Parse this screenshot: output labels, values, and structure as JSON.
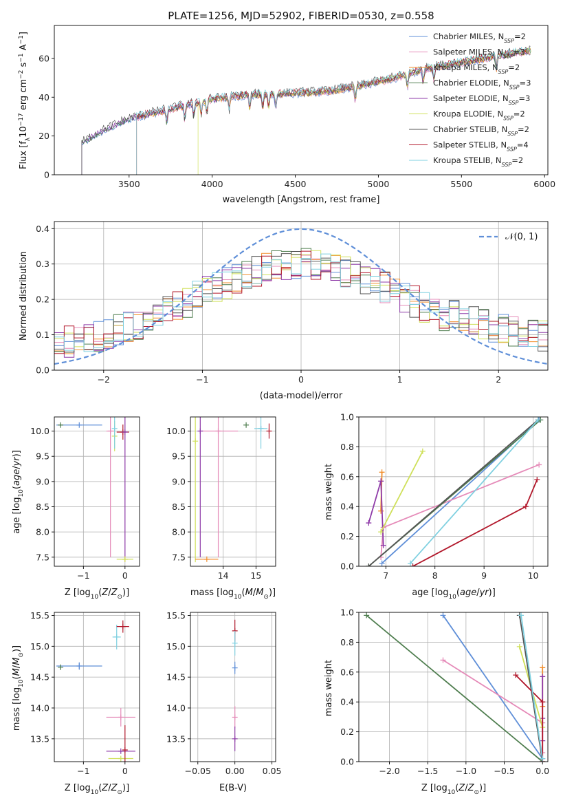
{
  "figure_title": "PLATE=1256, MJD=52902, FIBERID=0530, z=0.558",
  "models": [
    {
      "name": "Chabrier MILES",
      "nssp": "2",
      "color": "#5f8fd8"
    },
    {
      "name": "Salpeter MILES",
      "nssp": "3",
      "color": "#e58ab8"
    },
    {
      "name": "Kroupa MILES",
      "nssp": "2",
      "color": "#f28e2b"
    },
    {
      "name": "Chabrier ELODIE",
      "nssp": "3",
      "color": "#4e7d4e"
    },
    {
      "name": "Salpeter ELODIE",
      "nssp": "3",
      "color": "#8e3aa8"
    },
    {
      "name": "Kroupa ELODIE",
      "nssp": "2",
      "color": "#cfe05a"
    },
    {
      "name": "Chabrier STELIB",
      "nssp": "2",
      "color": "#555555"
    },
    {
      "name": "Salpeter STELIB",
      "nssp": "4",
      "color": "#b2182b"
    },
    {
      "name": "Kroupa STELIB",
      "nssp": "2",
      "color": "#7fd0e0"
    }
  ],
  "chart_data": [
    {
      "id": "spectrum",
      "type": "line",
      "title": "PLATE=1256, MJD=52902, FIBERID=0530, z=0.558",
      "xlabel": "wavelength [Angstrom, rest frame]",
      "ylabel": "Flux [f_λ 10^-17 erg cm^-2 s^-1 A^-1]",
      "xlim": [
        3050,
        6020
      ],
      "ylim": [
        0,
        77
      ],
      "xticks": [
        3500,
        4000,
        4500,
        5000,
        5500,
        6000
      ],
      "yticks": [
        0,
        20,
        40,
        60
      ],
      "grid": false,
      "legend": "top-right",
      "continuum": [
        [
          3230,
          17
        ],
        [
          3300,
          21
        ],
        [
          3500,
          29
        ],
        [
          3700,
          33
        ],
        [
          3900,
          37
        ],
        [
          4000,
          39
        ],
        [
          4200,
          41
        ],
        [
          4500,
          42
        ],
        [
          4700,
          43
        ],
        [
          4900,
          46
        ],
        [
          5100,
          50
        ],
        [
          5300,
          55
        ],
        [
          5500,
          58
        ],
        [
          5700,
          61
        ],
        [
          5900,
          64
        ]
      ],
      "starts": [
        3215,
        3545,
        3545,
        3215,
        3215,
        3915,
        3215,
        3545,
        3545
      ],
      "absorption_lines": [
        3727,
        3835,
        3889,
        3934,
        3968,
        4102,
        4226,
        4304,
        4340,
        4383,
        4861,
        5175,
        5270,
        5335,
        5710
      ]
    },
    {
      "id": "residuals",
      "type": "line",
      "xlabel": "(data-model)/error",
      "ylabel": "Normed distribution",
      "xlim": [
        -2.5,
        2.5
      ],
      "ylim": [
        0,
        0.42
      ],
      "xticks": [
        -2,
        -1,
        0,
        1,
        2
      ],
      "yticks": [
        0.0,
        0.1,
        0.2,
        0.3,
        0.4
      ],
      "grid": true,
      "legend": "top-right",
      "reference_label": "𝒩(0, 1)",
      "reference_color": "#5f8fd8"
    },
    {
      "id": "age_vs_Z",
      "type": "scatter",
      "xlabel": "Z [log10(Z/Z⊙)]",
      "ylabel": "age [log10(age/yr)]",
      "xlim": [
        -1.7,
        0.35
      ],
      "ylim": [
        7.32,
        10.28
      ],
      "xticks": [
        -1,
        0
      ],
      "yticks": [
        7.5,
        8.0,
        8.5,
        9.0,
        9.5,
        10.0
      ],
      "grid": true,
      "points": [
        {
          "m": 0,
          "x": -1.1,
          "y": 10.12,
          "xerr": 0.55
        },
        {
          "m": 3,
          "x": -1.55,
          "y": 10.12,
          "yerr": 0.02
        },
        {
          "m": 1,
          "x": -0.35,
          "y": 10.0,
          "xerr": 0.1,
          "yerr": 2.5
        },
        {
          "m": 5,
          "x": -0.25,
          "y": 9.9,
          "yerr": 0.3
        },
        {
          "m": 8,
          "x": -0.25,
          "y": 10.05,
          "yerr": 0.4
        },
        {
          "m": 7,
          "x": -0.05,
          "y": 9.98,
          "xerr": 0.15,
          "yerr": 0.15
        },
        {
          "m": 4,
          "x": 0.0,
          "y": 9.98,
          "yerr": 2.5
        },
        {
          "m": 2,
          "x": 0.0,
          "y": 7.46
        },
        {
          "m": 5,
          "x": 0.0,
          "y": 7.46,
          "xerr": 0.2
        }
      ]
    },
    {
      "id": "age_vs_mass",
      "type": "scatter",
      "xlabel": "mass [log10(M/M⊙)]",
      "ylabel": "",
      "xlim": [
        13.0,
        15.6
      ],
      "ylim": [
        7.32,
        10.28
      ],
      "xticks": [
        14,
        15
      ],
      "yticks": [
        7.5,
        8.0,
        8.5,
        9.0,
        9.5,
        10.0
      ],
      "grid": true,
      "points": [
        {
          "m": 3,
          "x": 14.7,
          "y": 10.12
        },
        {
          "m": 0,
          "x": 15.15,
          "y": 10.05
        },
        {
          "m": 8,
          "x": 15.15,
          "y": 10.05,
          "xerr": 0.2,
          "yerr": 0.4
        },
        {
          "m": 7,
          "x": 15.4,
          "y": 10.0,
          "yerr": 0.15
        },
        {
          "m": 1,
          "x": 13.85,
          "y": 10.0,
          "xerr": 0.6,
          "yerr": 2.5
        },
        {
          "m": 4,
          "x": 13.3,
          "y": 10.0,
          "yerr": 2.5
        },
        {
          "m": 5,
          "x": 13.15,
          "y": 9.8,
          "yerr": 2.4
        },
        {
          "m": 2,
          "x": 13.5,
          "y": 7.46,
          "xerr": 0.35
        }
      ]
    },
    {
      "id": "weight_vs_age",
      "type": "line",
      "xlabel": "age [log10(age/yr)]",
      "ylabel": "mass weight",
      "xlim": [
        6.45,
        10.3
      ],
      "ylim": [
        0,
        1
      ],
      "xticks": [
        7,
        8,
        9,
        10
      ],
      "yticks": [
        0.0,
        0.2,
        0.4,
        0.6,
        0.8,
        1.0
      ],
      "grid": true,
      "series": [
        {
          "m": 0,
          "points": [
            [
              6.92,
              0.02
            ],
            [
              10.12,
              0.98
            ]
          ]
        },
        {
          "m": 1,
          "points": [
            [
              6.9,
              0.06
            ],
            [
              6.95,
              0.26
            ],
            [
              10.12,
              0.68
            ]
          ]
        },
        {
          "m": 2,
          "points": [
            [
              6.9,
              0.37
            ],
            [
              6.92,
              0.63
            ]
          ]
        },
        {
          "m": 3,
          "points": [
            [
              6.65,
              0.0
            ],
            [
              10.15,
              0.98
            ]
          ]
        },
        {
          "m": 4,
          "points": [
            [
              6.65,
              0.29
            ],
            [
              6.9,
              0.57
            ],
            [
              6.95,
              0.14
            ]
          ]
        },
        {
          "m": 5,
          "points": [
            [
              6.9,
              0.23
            ],
            [
              7.75,
              0.77
            ]
          ]
        },
        {
          "m": 6,
          "points": [
            [
              6.65,
              0.0
            ],
            [
              10.1,
              0.98
            ]
          ]
        },
        {
          "m": 7,
          "points": [
            [
              7.55,
              0.0
            ],
            [
              9.85,
              0.4
            ],
            [
              10.08,
              0.58
            ]
          ]
        },
        {
          "m": 8,
          "points": [
            [
              7.5,
              0.02
            ],
            [
              10.1,
              0.98
            ]
          ]
        }
      ]
    },
    {
      "id": "mass_vs_Z",
      "type": "scatter",
      "xlabel": "Z [log10(Z/Z⊙)]",
      "ylabel": "mass [log10(M/M⊙)]",
      "xlim": [
        -1.7,
        0.35
      ],
      "ylim": [
        13.13,
        15.55
      ],
      "xticks": [
        -1,
        0
      ],
      "yticks": [
        13.5,
        14.0,
        14.5,
        15.0,
        15.5
      ],
      "grid": true,
      "points": [
        {
          "m": 0,
          "x": -1.1,
          "y": 14.68,
          "xerr": 0.55,
          "yerr": 0.06
        },
        {
          "m": 3,
          "x": -1.55,
          "y": 14.66,
          "yerr": 0.04
        },
        {
          "m": 8,
          "x": -0.2,
          "y": 15.15,
          "xerr": 0.1,
          "yerr": 0.2
        },
        {
          "m": 7,
          "x": -0.05,
          "y": 15.32,
          "xerr": 0.15,
          "yerr": 0.1
        },
        {
          "m": 1,
          "x": -0.1,
          "y": 13.85,
          "xerr": 0.35,
          "yerr": 0.15
        },
        {
          "m": 4,
          "x": -0.1,
          "y": 13.3,
          "xerr": 0.35
        },
        {
          "m": 5,
          "x": -0.1,
          "y": 13.18,
          "xerr": 0.3
        },
        {
          "m": 7,
          "x": 0.0,
          "y": 13.32,
          "yerr": 0.4
        }
      ]
    },
    {
      "id": "mass_vs_ebv",
      "type": "scatter",
      "xlabel": "E(B-V)",
      "ylabel": "",
      "xlim": [
        -0.06,
        0.055
      ],
      "ylim": [
        13.13,
        15.55
      ],
      "xticks": [
        -0.05,
        0.0,
        0.05
      ],
      "yticks": [
        13.5,
        14.0,
        14.5,
        15.0,
        15.5
      ],
      "grid": true,
      "points": [
        {
          "m": 7,
          "x": 0.0,
          "y": 15.25,
          "yerr": 0.18
        },
        {
          "m": 8,
          "x": 0.0,
          "y": 15.05,
          "yerr": 0.2
        },
        {
          "m": 0,
          "x": 0.0,
          "y": 14.65,
          "yerr": 0.1
        },
        {
          "m": 1,
          "x": 0.0,
          "y": 13.85,
          "yerr": 0.18
        },
        {
          "m": 4,
          "x": 0.0,
          "y": 13.5,
          "yerr": 0.2
        }
      ]
    },
    {
      "id": "weight_vs_Z",
      "type": "line",
      "xlabel": "Z [log10(Z/Z⊙)]",
      "ylabel": "mass weight",
      "xlim": [
        -2.4,
        0.07
      ],
      "ylim": [
        0,
        1
      ],
      "xticks": [
        -2.0,
        -1.5,
        -1.0,
        -0.5,
        0.0
      ],
      "yticks": [
        0.0,
        0.2,
        0.4,
        0.6,
        0.8,
        1.0
      ],
      "grid": true,
      "series": [
        {
          "m": 0,
          "points": [
            [
              -1.3,
              0.98
            ],
            [
              0.0,
              0.02
            ]
          ]
        },
        {
          "m": 1,
          "points": [
            [
              -1.3,
              0.68
            ],
            [
              0.0,
              0.26
            ],
            [
              0.0,
              0.06
            ]
          ]
        },
        {
          "m": 2,
          "points": [
            [
              0.0,
              0.63
            ],
            [
              0.0,
              0.37
            ]
          ]
        },
        {
          "m": 3,
          "points": [
            [
              -2.3,
              0.98
            ],
            [
              0.0,
              0.0
            ]
          ]
        },
        {
          "m": 4,
          "points": [
            [
              0.0,
              0.57
            ],
            [
              0.0,
              0.29
            ],
            [
              0.0,
              0.14
            ]
          ]
        },
        {
          "m": 5,
          "points": [
            [
              -0.3,
              0.77
            ],
            [
              0.0,
              0.23
            ]
          ]
        },
        {
          "m": 6,
          "points": [
            [
              -0.3,
              0.98
            ],
            [
              0.0,
              0.0
            ]
          ]
        },
        {
          "m": 7,
          "points": [
            [
              -0.35,
              0.58
            ],
            [
              0.0,
              0.4
            ],
            [
              0.0,
              0.0
            ]
          ]
        },
        {
          "m": 8,
          "points": [
            [
              -0.28,
              0.98
            ],
            [
              0.0,
              0.02
            ]
          ]
        }
      ]
    }
  ]
}
